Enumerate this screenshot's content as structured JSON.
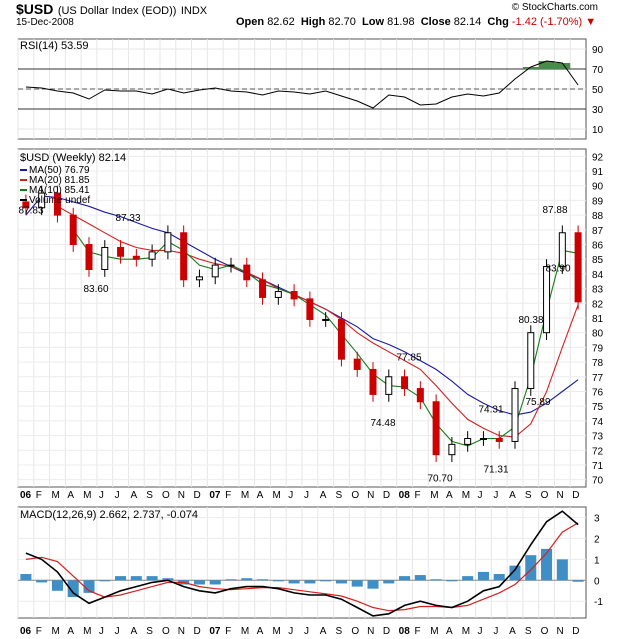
{
  "header": {
    "symbol": "$USD",
    "description": "(US Dollar Index (EOD))",
    "exchange": "INDX",
    "date": "15-Dec-2008",
    "open_label": "Open",
    "open": "82.62",
    "high_label": "High",
    "high": "82.70",
    "low_label": "Low",
    "low": "81.98",
    "close_label": "Close",
    "close": "82.14",
    "chg_label": "Chg",
    "chg": "-1.42 (-1.70%)",
    "chg_icon": "down-triangle-icon",
    "credit": "© StockCharts.com"
  },
  "colors": {
    "up": "#000000",
    "down": "#cc0000",
    "ma50": "#1a1aa6",
    "ma20": "#d62020",
    "ma10": "#1a7a1a",
    "rsi_fill_over": "#4a8a4a",
    "rsi_fill_under": "#a05050",
    "hist": "#3f8fc6",
    "macd": "#000000",
    "signal": "#d62020"
  },
  "chart_data": [
    {
      "type": "line",
      "panel": "rsi",
      "label": "RSI(14) 53.59",
      "ylim": [
        0,
        100
      ],
      "yticks": [
        10,
        30,
        50,
        70,
        90
      ],
      "reference_lines": [
        30,
        70
      ],
      "x": [
        "2006-01",
        "2006-02",
        "2006-03",
        "2006-04",
        "2006-05",
        "2006-06",
        "2006-07",
        "2006-08",
        "2006-09",
        "2006-10",
        "2006-11",
        "2006-12",
        "2007-01",
        "2007-02",
        "2007-03",
        "2007-04",
        "2007-05",
        "2007-06",
        "2007-07",
        "2007-08",
        "2007-09",
        "2007-10",
        "2007-11",
        "2007-12",
        "2008-01",
        "2008-02",
        "2008-03",
        "2008-04",
        "2008-05",
        "2008-06",
        "2008-07",
        "2008-08",
        "2008-09",
        "2008-10",
        "2008-11",
        "2008-12"
      ],
      "series": [
        {
          "name": "RSI(14)",
          "values": [
            52,
            51,
            48,
            46,
            40,
            49,
            48,
            48,
            45,
            50,
            46,
            49,
            51,
            48,
            47,
            44,
            48,
            47,
            45,
            48,
            43,
            38,
            31,
            44,
            42,
            34,
            35,
            42,
            45,
            43,
            46,
            60,
            72,
            78,
            76,
            54
          ]
        }
      ]
    },
    {
      "type": "bar",
      "panel": "price",
      "title": "$USD (Weekly) 82.14",
      "ylim": [
        69.5,
        92.5
      ],
      "yticks": [
        70,
        71,
        72,
        73,
        74,
        75,
        76,
        77,
        78,
        79,
        80,
        81,
        82,
        83,
        84,
        85,
        86,
        87,
        88,
        89,
        90,
        91,
        92
      ],
      "legend": [
        {
          "name": "MA(50) 76.79",
          "color_key": "ma50"
        },
        {
          "name": "MA(20) 81.85",
          "color_key": "ma20"
        },
        {
          "name": "MA(10) 85.41",
          "color_key": "ma10"
        },
        {
          "name": "Volume undef",
          "color_key": "up"
        }
      ],
      "annotations": [
        "87.83",
        "87.33",
        "83.60",
        "77.85",
        "74.48",
        "70.70",
        "74.31",
        "71.31",
        "75.89",
        "80.38",
        "83.90",
        "87.88"
      ],
      "x": [
        "2006-01",
        "2006-02",
        "2006-03",
        "2006-04",
        "2006-05",
        "2006-06",
        "2006-07",
        "2006-08",
        "2006-09",
        "2006-10",
        "2006-11",
        "2006-12",
        "2007-01",
        "2007-02",
        "2007-03",
        "2007-04",
        "2007-05",
        "2007-06",
        "2007-07",
        "2007-08",
        "2007-09",
        "2007-10",
        "2007-11",
        "2007-12",
        "2008-01",
        "2008-02",
        "2008-03",
        "2008-04",
        "2008-05",
        "2008-06",
        "2008-07",
        "2008-08",
        "2008-09",
        "2008-10",
        "2008-11",
        "2008-12"
      ],
      "series": [
        {
          "name": "Close",
          "values": [
            88.5,
            89.5,
            88.0,
            86.0,
            84.3,
            85.8,
            85.2,
            85.0,
            85.5,
            86.8,
            83.6,
            83.8,
            84.6,
            84.6,
            83.6,
            82.4,
            82.8,
            82.3,
            80.9,
            80.9,
            78.2,
            77.5,
            75.8,
            77.0,
            76.2,
            75.3,
            71.7,
            72.4,
            72.8,
            72.8,
            72.6,
            76.2,
            80.0,
            84.5,
            86.8,
            82.1
          ]
        },
        {
          "name": "MA(50)",
          "values": [
            88.0,
            89.3,
            89.2,
            88.9,
            88.6,
            88.2,
            87.9,
            87.5,
            87.1,
            86.8,
            86.2,
            85.6,
            85.0,
            84.5,
            84.0,
            83.6,
            83.1,
            82.6,
            82.1,
            81.6,
            81.0,
            80.4,
            79.6,
            79.2,
            78.7,
            78.1,
            77.5,
            76.7,
            75.8,
            75.2,
            74.7,
            74.4,
            74.6,
            75.2,
            76.0,
            76.8
          ]
        },
        {
          "name": "MA(20)",
          "values": [
            null,
            null,
            88.6,
            88.0,
            87.4,
            86.8,
            86.2,
            85.8,
            85.6,
            85.6,
            85.4,
            85.0,
            84.7,
            84.5,
            84.1,
            83.6,
            83.0,
            82.6,
            82.1,
            81.6,
            80.9,
            80.0,
            79.3,
            78.7,
            78.1,
            77.5,
            76.4,
            75.2,
            74.1,
            73.5,
            73.0,
            72.9,
            73.8,
            76.0,
            79.0,
            81.9
          ]
        },
        {
          "name": "MA(10)",
          "values": [
            null,
            null,
            null,
            87.0,
            85.5,
            85.2,
            85.0,
            85.0,
            85.1,
            86.2,
            85.6,
            84.6,
            84.3,
            84.6,
            84.1,
            83.3,
            83.0,
            82.6,
            81.9,
            81.2,
            79.9,
            78.6,
            77.2,
            76.4,
            76.3,
            75.6,
            73.8,
            72.6,
            72.3,
            72.8,
            72.8,
            73.6,
            77.0,
            81.5,
            85.6,
            85.4
          ]
        }
      ]
    },
    {
      "type": "line",
      "panel": "macd",
      "label": "MACD(12,26,9) 2.662, 2.737, -0.074",
      "ylim": [
        -1.8,
        3.5
      ],
      "yticks": [
        -1,
        0,
        1,
        2,
        3
      ],
      "x": [
        "2006-01",
        "2006-02",
        "2006-03",
        "2006-04",
        "2006-05",
        "2006-06",
        "2006-07",
        "2006-08",
        "2006-09",
        "2006-10",
        "2006-11",
        "2006-12",
        "2007-01",
        "2007-02",
        "2007-03",
        "2007-04",
        "2007-05",
        "2007-06",
        "2007-07",
        "2007-08",
        "2007-09",
        "2007-10",
        "2007-11",
        "2007-12",
        "2008-01",
        "2008-02",
        "2008-03",
        "2008-04",
        "2008-05",
        "2008-06",
        "2008-07",
        "2008-08",
        "2008-09",
        "2008-10",
        "2008-11",
        "2008-12"
      ],
      "series": [
        {
          "name": "MACD",
          "values": [
            1.3,
            1.0,
            0.4,
            -0.6,
            -1.1,
            -0.8,
            -0.5,
            -0.3,
            -0.1,
            0.0,
            -0.3,
            -0.5,
            -0.6,
            -0.4,
            -0.3,
            -0.3,
            -0.4,
            -0.6,
            -0.7,
            -0.7,
            -0.9,
            -1.3,
            -1.7,
            -1.6,
            -1.2,
            -1.0,
            -1.2,
            -1.3,
            -1.0,
            -0.5,
            -0.3,
            0.5,
            1.7,
            2.8,
            3.3,
            2.66
          ]
        },
        {
          "name": "Signal",
          "values": [
            1.0,
            1.1,
            0.9,
            0.2,
            -0.5,
            -0.8,
            -0.7,
            -0.5,
            -0.3,
            -0.1,
            -0.1,
            -0.3,
            -0.4,
            -0.45,
            -0.4,
            -0.35,
            -0.35,
            -0.45,
            -0.55,
            -0.65,
            -0.75,
            -1.0,
            -1.3,
            -1.45,
            -1.4,
            -1.25,
            -1.25,
            -1.3,
            -1.2,
            -0.9,
            -0.6,
            -0.2,
            0.5,
            1.3,
            2.3,
            2.74
          ]
        },
        {
          "name": "Histogram",
          "values": [
            0.3,
            -0.1,
            -0.5,
            -0.8,
            -0.6,
            0.0,
            0.2,
            0.2,
            0.2,
            0.1,
            -0.2,
            -0.2,
            -0.2,
            0.05,
            0.1,
            0.05,
            -0.05,
            -0.15,
            -0.15,
            -0.05,
            -0.15,
            -0.3,
            -0.4,
            -0.15,
            0.2,
            0.25,
            0.05,
            0.0,
            0.2,
            0.4,
            0.3,
            0.7,
            1.2,
            1.5,
            1.0,
            -0.07
          ]
        }
      ]
    }
  ],
  "x_axis_labels": [
    "06",
    "F",
    "M",
    "A",
    "M",
    "J",
    "J",
    "A",
    "S",
    "O",
    "N",
    "D",
    "07",
    "F",
    "M",
    "A",
    "M",
    "J",
    "J",
    "A",
    "S",
    "O",
    "N",
    "D",
    "08",
    "F",
    "M",
    "A",
    "M",
    "J",
    "J",
    "A",
    "S",
    "O",
    "N",
    "D"
  ]
}
